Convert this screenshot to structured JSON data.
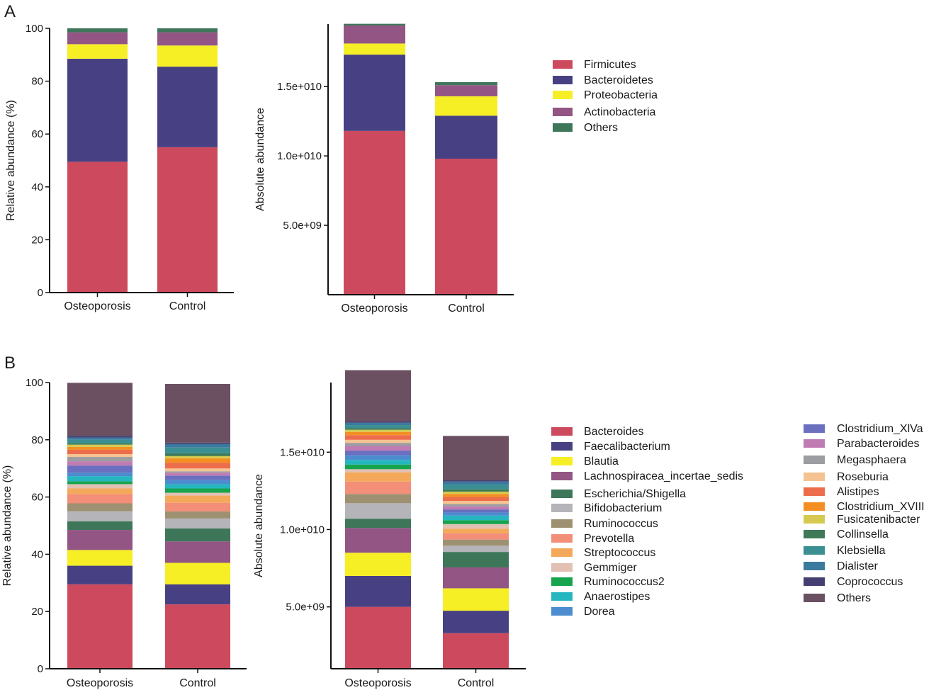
{
  "panel_labels": {
    "A": "A",
    "B": "B"
  },
  "chart_data": [
    {
      "id": "A-rel",
      "type": "bar",
      "stacked": true,
      "title": "",
      "xlabel": "",
      "ylabel": "Relative abundance (%)",
      "ylim": [
        0,
        100
      ],
      "yticks": [
        0,
        20,
        40,
        60,
        80,
        100
      ],
      "ytick_labels": [
        "0",
        "20",
        "40",
        "60",
        "80",
        "100"
      ],
      "categories": [
        "Osteoporosis",
        "Control"
      ],
      "series": [
        {
          "name": "Firmicutes",
          "values": [
            49.5,
            55.0
          ]
        },
        {
          "name": "Bacteroidetes",
          "values": [
            39.0,
            30.5
          ]
        },
        {
          "name": "Proteobacteria",
          "values": [
            5.5,
            8.0
          ]
        },
        {
          "name": "Actinobacteria",
          "values": [
            4.5,
            5.0
          ]
        },
        {
          "name": "Others",
          "values": [
            1.5,
            1.5
          ]
        }
      ]
    },
    {
      "id": "A-abs",
      "type": "bar",
      "stacked": true,
      "title": "",
      "xlabel": "",
      "ylabel": "Absolute abundance",
      "ylim": [
        0,
        19500000000
      ],
      "yticks": [
        5000000000,
        10000000000,
        15000000000
      ],
      "ytick_labels": [
        "5.0e+09",
        "1.0e+010",
        "1.5e+010"
      ],
      "categories": [
        "Osteoporosis",
        "Control"
      ],
      "series": [
        {
          "name": "Firmicutes",
          "values": [
            11800000000,
            9800000000
          ]
        },
        {
          "name": "Bacteroidetes",
          "values": [
            5500000000,
            3100000000
          ]
        },
        {
          "name": "Proteobacteria",
          "values": [
            800000000,
            1400000000
          ]
        },
        {
          "name": "Actinobacteria",
          "values": [
            1300000000,
            800000000
          ]
        },
        {
          "name": "Others",
          "values": [
            120000000,
            220000000
          ]
        }
      ]
    },
    {
      "id": "B-rel",
      "type": "bar",
      "stacked": true,
      "title": "",
      "xlabel": "",
      "ylabel": "Relative abundance (%)",
      "ylim": [
        0,
        100
      ],
      "yticks": [
        0,
        20,
        40,
        60,
        80,
        100
      ],
      "ytick_labels": [
        "0",
        "20",
        "40",
        "60",
        "80",
        "100"
      ],
      "categories": [
        "Osteoporosis",
        "Control"
      ],
      "series": [
        {
          "name": "Bacteroides",
          "values": [
            29.5,
            22.5
          ]
        },
        {
          "name": "Faecalibacterium",
          "values": [
            6.5,
            7.0
          ]
        },
        {
          "name": "Blautia",
          "values": [
            5.5,
            7.5
          ]
        },
        {
          "name": "Lachnospiracea_incertae_sedis",
          "values": [
            7.0,
            7.5
          ]
        },
        {
          "name": "Escherichia/Shigella",
          "values": [
            3.0,
            4.5
          ]
        },
        {
          "name": "Bifidobacterium",
          "values": [
            3.5,
            3.5
          ]
        },
        {
          "name": "Ruminococcus",
          "values": [
            2.8,
            2.5
          ]
        },
        {
          "name": "Prevotella",
          "values": [
            3.2,
            3.0
          ]
        },
        {
          "name": "Streptococcus",
          "values": [
            2.0,
            2.5
          ]
        },
        {
          "name": "Gemmiger",
          "values": [
            1.5,
            1.0
          ]
        },
        {
          "name": "Ruminococcus2",
          "values": [
            1.0,
            1.5
          ]
        },
        {
          "name": "Anaerostipes",
          "values": [
            1.8,
            1.5
          ]
        },
        {
          "name": "Dorea",
          "values": [
            1.2,
            1.5
          ]
        },
        {
          "name": "Clostridium_XlVa",
          "values": [
            2.5,
            1.5
          ]
        },
        {
          "name": "Parabacteroides",
          "values": [
            1.5,
            1.0
          ]
        },
        {
          "name": "Megasphaera",
          "values": [
            1.5,
            0.5
          ]
        },
        {
          "name": "Roseburia",
          "values": [
            1.0,
            1.0
          ]
        },
        {
          "name": "Alistipes",
          "values": [
            1.5,
            2.0
          ]
        },
        {
          "name": "Clostridium_XVIII",
          "values": [
            1.0,
            1.5
          ]
        },
        {
          "name": "Fusicatenibacter",
          "values": [
            0.8,
            0.8
          ]
        },
        {
          "name": "Collinsella",
          "values": [
            0.5,
            1.0
          ]
        },
        {
          "name": "Klebsiella",
          "values": [
            1.2,
            2.0
          ]
        },
        {
          "name": "Dialister",
          "values": [
            0.8,
            1.2
          ]
        },
        {
          "name": "Coprococcus",
          "values": [
            0.6,
            0.5
          ]
        },
        {
          "name": "Others",
          "values": [
            18.5,
            20.5
          ]
        }
      ]
    },
    {
      "id": "B-abs",
      "type": "bar",
      "stacked": true,
      "title": "",
      "xlabel": "",
      "ylabel": "Absolute abundance",
      "ylim": [
        1000000000,
        19500000000
      ],
      "yticks": [
        5000000000,
        10000000000,
        15000000000
      ],
      "ytick_labels": [
        "5.0e+09",
        "1.0e+010",
        "1.5e+010"
      ],
      "categories": [
        "Osteoporosis",
        "Control"
      ],
      "series": [
        {
          "name": "Bacteroides",
          "values": [
            4000000000,
            2300000000
          ]
        },
        {
          "name": "Faecalibacterium",
          "values": [
            2000000000,
            1450000000
          ]
        },
        {
          "name": "Blautia",
          "values": [
            1500000000,
            1450000000
          ]
        },
        {
          "name": "Lachnospiracea_incertae_sedis",
          "values": [
            1600000000,
            1350000000
          ]
        },
        {
          "name": "Escherichia/Shigella",
          "values": [
            600000000,
            1000000000
          ]
        },
        {
          "name": "Bifidobacterium",
          "values": [
            1000000000,
            400000000
          ]
        },
        {
          "name": "Ruminococcus",
          "values": [
            600000000,
            400000000
          ]
        },
        {
          "name": "Prevotella",
          "values": [
            800000000,
            400000000
          ]
        },
        {
          "name": "Streptococcus",
          "values": [
            600000000,
            300000000
          ]
        },
        {
          "name": "Gemmiger",
          "values": [
            200000000,
            300000000
          ]
        },
        {
          "name": "Ruminococcus2",
          "values": [
            300000000,
            250000000
          ]
        },
        {
          "name": "Anaerostipes",
          "values": [
            300000000,
            300000000
          ]
        },
        {
          "name": "Dorea",
          "values": [
            300000000,
            200000000
          ]
        },
        {
          "name": "Clostridium_XlVa",
          "values": [
            300000000,
            200000000
          ]
        },
        {
          "name": "Parabacteroides",
          "values": [
            300000000,
            200000000
          ]
        },
        {
          "name": "Megasphaera",
          "values": [
            200000000,
            150000000
          ]
        },
        {
          "name": "Roseburia",
          "values": [
            200000000,
            200000000
          ]
        },
        {
          "name": "Alistipes",
          "values": [
            300000000,
            250000000
          ]
        },
        {
          "name": "Clostridium_XVIII",
          "values": [
            200000000,
            200000000
          ]
        },
        {
          "name": "Fusicatenibacter",
          "values": [
            150000000,
            150000000
          ]
        },
        {
          "name": "Collinsella",
          "values": [
            100000000,
            150000000
          ]
        },
        {
          "name": "Klebsiella",
          "values": [
            200000000,
            300000000
          ]
        },
        {
          "name": "Dialister",
          "values": [
            150000000,
            200000000
          ]
        },
        {
          "name": "Coprococcus",
          "values": [
            100000000,
            100000000
          ]
        },
        {
          "name": "Others",
          "values": [
            3300000000,
            2850000000
          ]
        }
      ]
    }
  ],
  "legends": {
    "A": [
      {
        "label": "Firmicutes",
        "color": "#cd4a5e"
      },
      {
        "label": "Bacteroidetes",
        "color": "#474184"
      },
      {
        "label": "Proteobacteria",
        "color": "#f6ef26"
      },
      {
        "label": "Actinobacteria",
        "color": "#935584"
      },
      {
        "label": "Others",
        "color": "#3e765a"
      }
    ],
    "B_col1": [
      {
        "label": "Bacteroides",
        "color": "#cd4a5e"
      },
      {
        "label": "Faecalibacterium",
        "color": "#474184"
      },
      {
        "label": "Blautia",
        "color": "#f6ef26"
      },
      {
        "label": "Lachnospiracea_incertae_sedis",
        "color": "#935584"
      },
      {
        "label": "Escherichia/Shigella",
        "color": "#3e765a"
      },
      {
        "label": "Bifidobacterium",
        "color": "#b5b5b9"
      },
      {
        "label": "Ruminococcus",
        "color": "#9d9171"
      },
      {
        "label": "Prevotella",
        "color": "#f38e78"
      },
      {
        "label": "Streptococcus",
        "color": "#f4a95a"
      },
      {
        "label": "Gemmiger",
        "color": "#e2c0b3"
      },
      {
        "label": "Ruminococcus2",
        "color": "#17a44f"
      },
      {
        "label": "Anaerostipes",
        "color": "#25b6bf"
      },
      {
        "label": "Dorea",
        "color": "#4c8ccf"
      }
    ],
    "B_col2": [
      {
        "label": "Clostridium_XlVa",
        "color": "#6a6fbf"
      },
      {
        "label": "Parabacteroides",
        "color": "#c07cb2"
      },
      {
        "label": "Megasphaera",
        "color": "#9b9da1"
      },
      {
        "label": "Roseburia",
        "color": "#f4c391"
      },
      {
        "label": "Alistipes",
        "color": "#ec6c4c"
      },
      {
        "label": "Clostridium_XVIII",
        "color": "#f38f22"
      },
      {
        "label": "Fusicatenibacter",
        "color": "#d6c94f"
      },
      {
        "label": "Collinsella",
        "color": "#3f7a58"
      },
      {
        "label": "Klebsiella",
        "color": "#3b8f93"
      },
      {
        "label": "Dialister",
        "color": "#3a7a9e"
      },
      {
        "label": "Coprococcus",
        "color": "#453e71"
      },
      {
        "label": "Others",
        "color": "#6b5062"
      }
    ]
  }
}
